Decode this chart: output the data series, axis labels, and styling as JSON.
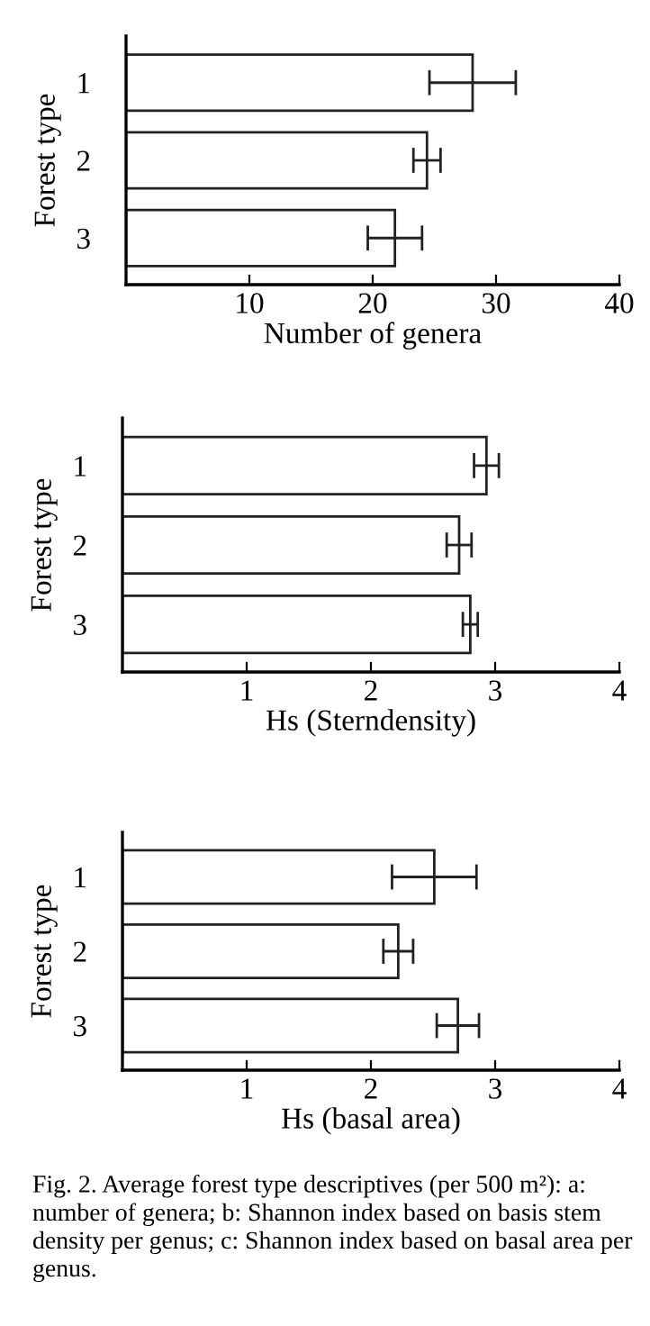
{
  "chart_data": [
    {
      "type": "bar",
      "orientation": "horizontal",
      "categories": [
        "1",
        "2",
        "3"
      ],
      "values": [
        28.1,
        24.4,
        21.8
      ],
      "errors": [
        3.5,
        1.1,
        2.2
      ],
      "color": "#ffffff",
      "xlabel": "Number of genera",
      "ylabel": "Forest type",
      "xlim": [
        0,
        40
      ],
      "xticks": [
        10,
        20,
        30,
        40
      ],
      "grid": false,
      "legend": false
    },
    {
      "type": "bar",
      "orientation": "horizontal",
      "categories": [
        "1",
        "2",
        "3"
      ],
      "values": [
        2.93,
        2.71,
        2.8
      ],
      "errors": [
        0.1,
        0.1,
        0.06
      ],
      "color": "#ffffff",
      "xlabel": "Hs (Sterndensity)",
      "ylabel": "Forest type",
      "xlim": [
        0,
        4
      ],
      "xticks": [
        1,
        2,
        3,
        4
      ],
      "grid": false,
      "legend": false
    },
    {
      "type": "bar",
      "orientation": "horizontal",
      "categories": [
        "1",
        "2",
        "3"
      ],
      "values": [
        2.51,
        2.22,
        2.7
      ],
      "errors": [
        0.34,
        0.12,
        0.17
      ],
      "color": "#ffffff",
      "xlabel": "Hs (basal area)",
      "ylabel": "Forest type",
      "xlim": [
        0,
        4
      ],
      "xticks": [
        1,
        2,
        3,
        4
      ],
      "grid": false,
      "legend": false,
      "annotations": [
        "Fig. 2. Average forest type descriptives (per 500 m²): a: number of genera; b: Shannon index based on basis stem density per genus; c: Shannon index based on basal area per genus."
      ]
    }
  ]
}
